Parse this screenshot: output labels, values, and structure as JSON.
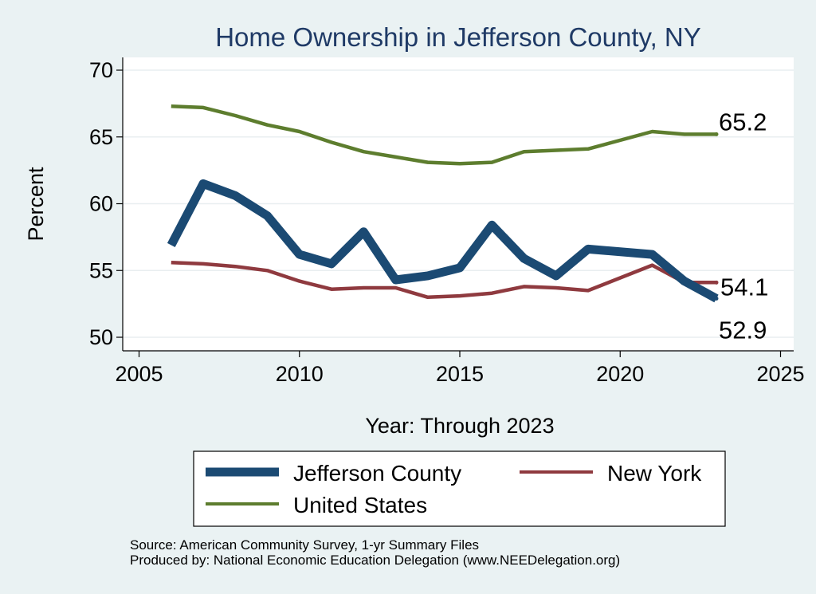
{
  "chart_data": {
    "type": "line",
    "title": "Home Ownership in Jefferson County, NY",
    "xlabel": "Year: Through 2023",
    "ylabel": "Percent",
    "xlim": [
      2005,
      2025
    ],
    "ylim": [
      50,
      70
    ],
    "xticks": [
      2005,
      2010,
      2015,
      2020,
      2025
    ],
    "yticks": [
      50,
      55,
      60,
      65,
      70
    ],
    "grid": true,
    "legend_position": "bottom",
    "series": [
      {
        "name": "Jefferson County",
        "color": "#1b4a73",
        "style": "thick",
        "x": [
          2006,
          2007,
          2008,
          2009,
          2010,
          2011,
          2012,
          2013,
          2014,
          2015,
          2016,
          2017,
          2018,
          2019,
          2021,
          2022,
          2023
        ],
        "y": [
          56.9,
          61.5,
          60.6,
          59.1,
          56.2,
          55.5,
          57.9,
          54.3,
          54.6,
          55.2,
          58.4,
          55.9,
          54.6,
          56.6,
          56.2,
          54.2,
          52.9
        ],
        "end_label": "52.9"
      },
      {
        "name": "New York",
        "color": "#8f3a3f",
        "style": "thin",
        "x": [
          2006,
          2007,
          2008,
          2009,
          2010,
          2011,
          2012,
          2013,
          2014,
          2015,
          2016,
          2017,
          2018,
          2019,
          2021,
          2022,
          2023
        ],
        "y": [
          55.6,
          55.5,
          55.3,
          55.0,
          54.2,
          53.6,
          53.7,
          53.7,
          53.0,
          53.1,
          53.3,
          53.8,
          53.7,
          53.5,
          55.4,
          54.1,
          54.1
        ],
        "end_label": "54.1"
      },
      {
        "name": "United States",
        "color": "#5d7d2e",
        "style": "thin",
        "x": [
          2006,
          2007,
          2008,
          2009,
          2010,
          2011,
          2012,
          2013,
          2014,
          2015,
          2016,
          2017,
          2018,
          2019,
          2021,
          2022,
          2023
        ],
        "y": [
          67.3,
          67.2,
          66.6,
          65.9,
          65.4,
          64.6,
          63.9,
          63.5,
          63.1,
          63.0,
          63.1,
          63.9,
          64.0,
          64.1,
          65.4,
          65.2,
          65.2
        ],
        "end_label": "65.2"
      }
    ],
    "notes": [
      "Source: American Community Survey, 1-yr Summary Files",
      "Produced by: National Economic Education Delegation (www.NEEDelegation.org)"
    ]
  }
}
